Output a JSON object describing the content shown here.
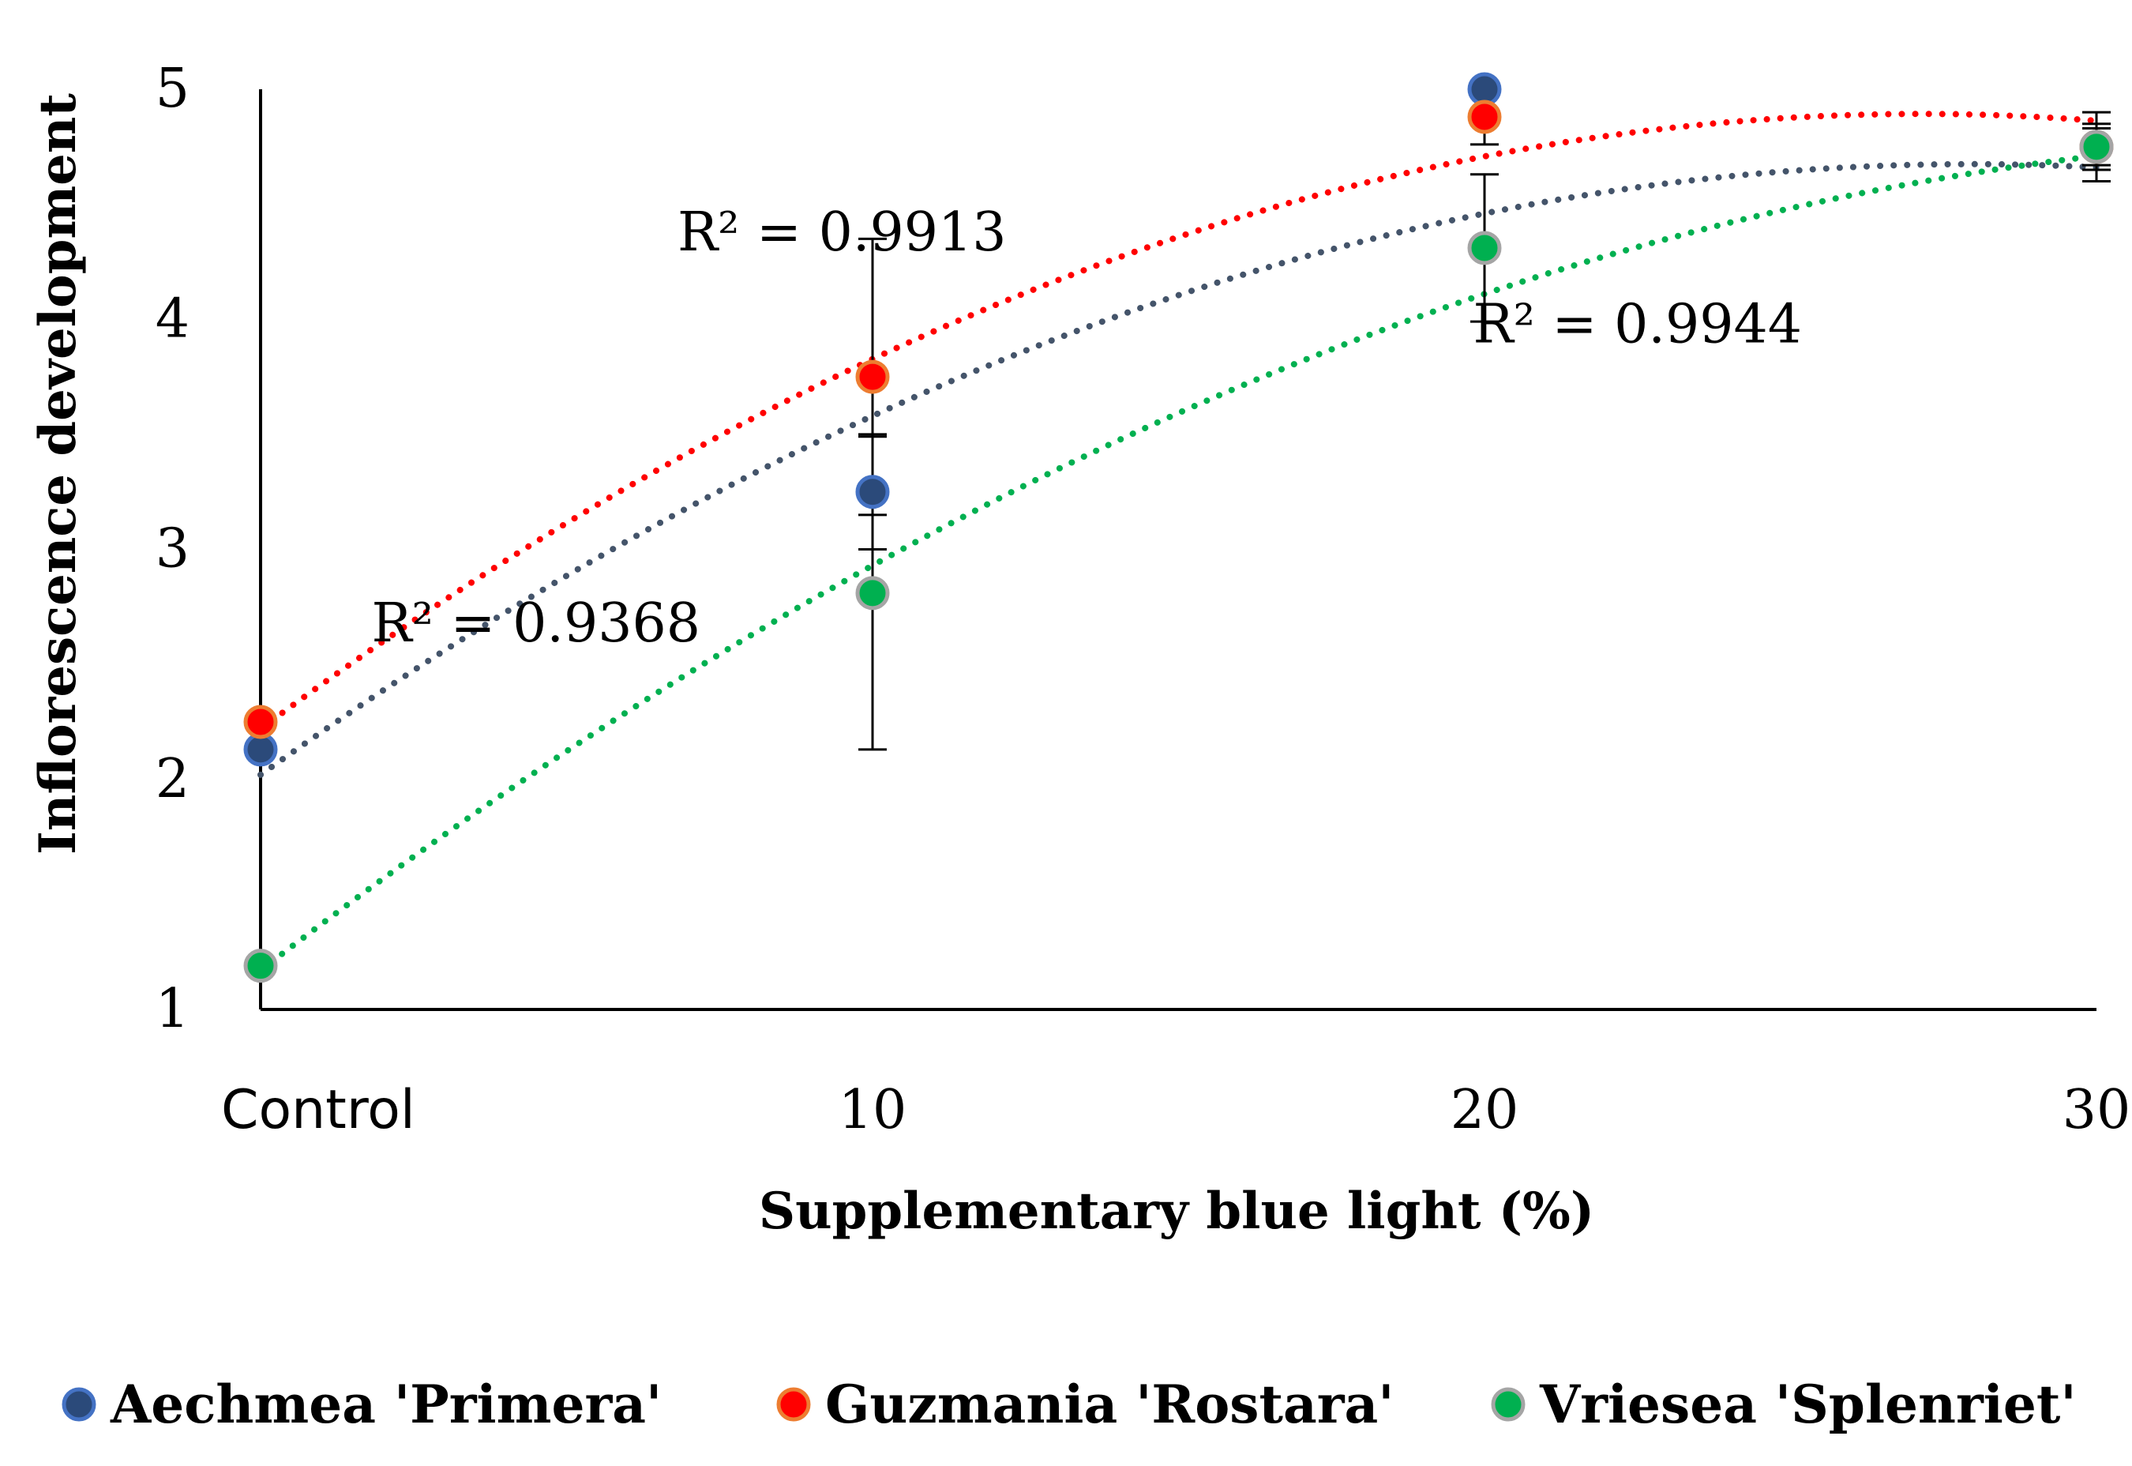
{
  "chart_data": {
    "type": "scatter",
    "title": "",
    "xlabel": "Supplementary blue light (%)",
    "ylabel": "Inflorescence development",
    "categories": [
      "Control",
      "10",
      "20",
      "30"
    ],
    "x": [
      0,
      10,
      20,
      30
    ],
    "xlim": [
      0,
      30
    ],
    "ylim": [
      1,
      5
    ],
    "yticks": [
      "1",
      "2",
      "3",
      "4",
      "5"
    ],
    "grid": false,
    "legend_position": "bottom",
    "trendline": "polynomial (dotted)",
    "series": [
      {
        "name": "Aechmea 'Primera'",
        "values": [
          2.13,
          3.25,
          5.0,
          4.75
        ],
        "errors": [
          0.0,
          0.25,
          0.0,
          0.15
        ],
        "fill": "#2b4a7a",
        "stroke": "#4472c4",
        "trend_color": "#44546a",
        "trend_coef": [
          2.02,
          0.19,
          -0.0034
        ],
        "r2": "R² = 0.9368"
      },
      {
        "name": "Guzmania 'Rostara'",
        "values": [
          2.25,
          3.75,
          4.88,
          4.75
        ],
        "errors": [
          0.0,
          0.6,
          0.12,
          0.1
        ],
        "fill": "#ff0000",
        "stroke": "#ed7d31",
        "trend_color": "#ff0000",
        "trend_coef": [
          2.22,
          0.197,
          -0.00363
        ],
        "r2": "R² = 0.9913"
      },
      {
        "name": "Vriesea 'Splenriet'",
        "values": [
          1.19,
          2.81,
          4.31,
          4.75
        ],
        "errors": [
          0.0,
          0.68,
          0.32,
          0.08
        ],
        "fill": "#00b050",
        "stroke": "#a5a5a5",
        "trend_color": "#00b050",
        "trend_coef": [
          1.17,
          0.205,
          -0.0029
        ],
        "r2": "R² = 0.9944"
      }
    ]
  }
}
